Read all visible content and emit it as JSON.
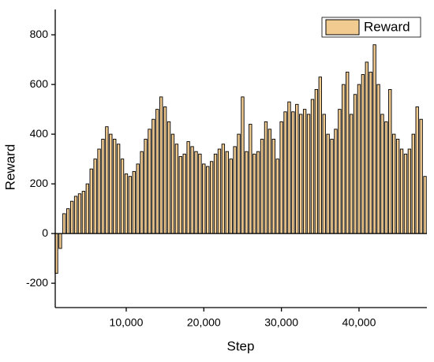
{
  "chart_data": {
    "type": "bar",
    "x_label": "Step",
    "y_label": "Reward",
    "series": [
      {
        "name": "Reward",
        "color": "#f2cb90",
        "edgecolor": "#000000",
        "x": [
          1000,
          1500,
          2000,
          2500,
          3000,
          3500,
          4000,
          4500,
          5000,
          5500,
          6000,
          6500,
          7000,
          7500,
          8000,
          8500,
          9000,
          9500,
          10000,
          10500,
          11000,
          11500,
          12000,
          12500,
          13000,
          13500,
          14000,
          14500,
          15000,
          15500,
          16000,
          16500,
          17000,
          17500,
          18000,
          18500,
          19000,
          19500,
          20000,
          20500,
          21000,
          21500,
          22000,
          22500,
          23000,
          23500,
          24000,
          24500,
          25000,
          25500,
          26000,
          26500,
          27000,
          27500,
          28000,
          28500,
          29000,
          29500,
          30000,
          30500,
          31000,
          31500,
          32000,
          32500,
          33000,
          33500,
          34000,
          34500,
          35000,
          35500,
          36000,
          36500,
          37000,
          37500,
          38000,
          38500,
          39000,
          39500,
          40000,
          40500,
          41000,
          41500,
          42000,
          42500,
          43000,
          43500,
          44000,
          44500,
          45000,
          45500,
          46000,
          46500,
          47000,
          47500,
          48000,
          48500
        ],
        "values": [
          -160,
          -60,
          80,
          100,
          130,
          150,
          160,
          170,
          200,
          260,
          300,
          340,
          380,
          430,
          400,
          380,
          360,
          300,
          240,
          230,
          250,
          280,
          330,
          380,
          420,
          460,
          500,
          550,
          510,
          450,
          400,
          360,
          310,
          320,
          370,
          350,
          330,
          320,
          280,
          270,
          290,
          320,
          340,
          360,
          330,
          300,
          350,
          400,
          550,
          330,
          440,
          320,
          330,
          380,
          450,
          420,
          380,
          300,
          450,
          490,
          530,
          490,
          520,
          480,
          500,
          480,
          540,
          580,
          630,
          480,
          400,
          380,
          420,
          500,
          600,
          650,
          480,
          560,
          600,
          640,
          690,
          650,
          760,
          600,
          480,
          450,
          580,
          400,
          380,
          340,
          320,
          340,
          400,
          510,
          460,
          230
        ]
      }
    ],
    "xlim": [
      850,
      48750
    ],
    "ylim": [
      -298,
      902
    ],
    "xticks": [
      {
        "value": 10000,
        "label": "10,000"
      },
      {
        "value": 20000,
        "label": "20,000"
      },
      {
        "value": 30000,
        "label": "30,000"
      },
      {
        "value": 40000,
        "label": "40,000"
      }
    ],
    "yticks": [
      -200,
      0,
      200,
      400,
      600,
      800
    ],
    "legend": "upper right"
  }
}
